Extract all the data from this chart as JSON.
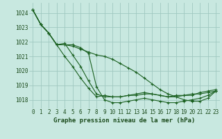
{
  "bg_color": "#c8e8e0",
  "grid_color": "#a0c8c0",
  "line_color": "#1a6020",
  "marker_color": "#1a6020",
  "title": "Graphe pression niveau de la mer (hPa)",
  "ylabel_values": [
    1018,
    1019,
    1020,
    1021,
    1022,
    1023,
    1024
  ],
  "xlim": [
    -0.5,
    23.5
  ],
  "ylim": [
    1017.4,
    1024.7
  ],
  "xtick_labels": [
    "0",
    "1",
    "2",
    "3",
    "4",
    "5",
    "6",
    "7",
    "8",
    "9",
    "10",
    "11",
    "12",
    "13",
    "14",
    "15",
    "16",
    "17",
    "18",
    "19",
    "20",
    "21",
    "22",
    "23"
  ],
  "series": [
    [
      1024.2,
      1023.2,
      1022.6,
      1021.8,
      1021.0,
      1020.3,
      1019.5,
      1018.8,
      1018.2,
      1018.3,
      1018.2,
      1018.2,
      1018.3,
      1018.3,
      1018.4,
      1018.4,
      1018.3,
      1018.2,
      1018.3,
      1018.3,
      1018.4,
      1018.4,
      1018.5,
      1018.6
    ],
    [
      1024.2,
      1023.2,
      1022.6,
      1021.8,
      1021.8,
      1021.8,
      1021.6,
      1021.2,
      1018.9,
      1018.0,
      1017.8,
      1017.8,
      1017.9,
      1018.0,
      1018.1,
      1018.0,
      1017.9,
      1017.8,
      1017.8,
      1017.9,
      1018.0,
      1018.1,
      1018.3,
      1018.6
    ],
    [
      1024.2,
      1023.2,
      1022.6,
      1021.8,
      1021.9,
      1021.1,
      1020.3,
      1019.3,
      1018.4,
      1018.2,
      1018.2,
      1018.2,
      1018.3,
      1018.4,
      1018.5,
      1018.4,
      1018.3,
      1018.2,
      1018.2,
      1018.3,
      1018.3,
      1018.5,
      1018.6,
      1018.7
    ],
    [
      1024.2,
      1023.2,
      1022.6,
      1021.8,
      1021.8,
      1021.7,
      1021.5,
      1021.3,
      1021.1,
      1021.0,
      1020.8,
      1020.5,
      1020.2,
      1019.9,
      1019.5,
      1019.1,
      1018.7,
      1018.4,
      1018.2,
      1018.0,
      1017.9,
      1017.9,
      1018.1,
      1018.6
    ]
  ],
  "tick_fontsize": 5.5,
  "title_fontsize": 6.5,
  "tick_color": "#1a4a1a",
  "title_color": "#1a4a1a"
}
